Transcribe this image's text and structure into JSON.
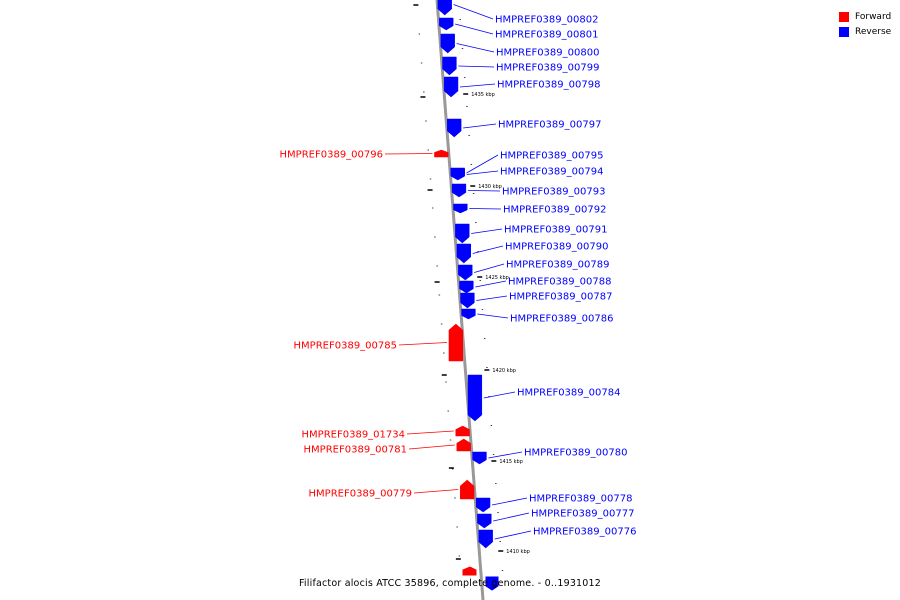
{
  "legend": {
    "items": [
      {
        "label": "Forward",
        "color": "#ff0000"
      },
      {
        "label": "Reverse",
        "color": "#0000ff"
      }
    ]
  },
  "caption": "Filifactor alocis ATCC 35896, complete genome. - 0..1931012",
  "colors": {
    "forward": "#ff0000",
    "reverse": "#0000ff",
    "backbone": "#888888"
  },
  "ticks": [
    "1435 kbp",
    "1430 kbp",
    "1425 kbp",
    "1420 kbp",
    "1415 kbp",
    "1410 kbp"
  ],
  "genes": [
    {
      "id": "HMPREF0389_00802",
      "strand": "reverse"
    },
    {
      "id": "HMPREF0389_00801",
      "strand": "reverse"
    },
    {
      "id": "HMPREF0389_00800",
      "strand": "reverse"
    },
    {
      "id": "HMPREF0389_00799",
      "strand": "reverse"
    },
    {
      "id": "HMPREF0389_00798",
      "strand": "reverse"
    },
    {
      "id": "HMPREF0389_00797",
      "strand": "reverse"
    },
    {
      "id": "HMPREF0389_00796",
      "strand": "forward"
    },
    {
      "id": "HMPREF0389_00795",
      "strand": "reverse"
    },
    {
      "id": "HMPREF0389_00794",
      "strand": "reverse"
    },
    {
      "id": "HMPREF0389_00793",
      "strand": "reverse"
    },
    {
      "id": "HMPREF0389_00792",
      "strand": "reverse"
    },
    {
      "id": "HMPREF0389_00791",
      "strand": "reverse"
    },
    {
      "id": "HMPREF0389_00790",
      "strand": "reverse"
    },
    {
      "id": "HMPREF0389_00789",
      "strand": "reverse"
    },
    {
      "id": "HMPREF0389_00788",
      "strand": "reverse"
    },
    {
      "id": "HMPREF0389_00787",
      "strand": "reverse"
    },
    {
      "id": "HMPREF0389_00786",
      "strand": "reverse"
    },
    {
      "id": "HMPREF0389_00785",
      "strand": "forward"
    },
    {
      "id": "HMPREF0389_00784",
      "strand": "reverse"
    },
    {
      "id": "HMPREF0389_01734",
      "strand": "forward"
    },
    {
      "id": "HMPREF0389_00781",
      "strand": "forward"
    },
    {
      "id": "HMPREF0389_00780",
      "strand": "reverse"
    },
    {
      "id": "HMPREF0389_00779",
      "strand": "forward"
    },
    {
      "id": "HMPREF0389_00778",
      "strand": "reverse"
    },
    {
      "id": "HMPREF0389_00777",
      "strand": "reverse"
    },
    {
      "id": "HMPREF0389_00776",
      "strand": "reverse"
    }
  ]
}
